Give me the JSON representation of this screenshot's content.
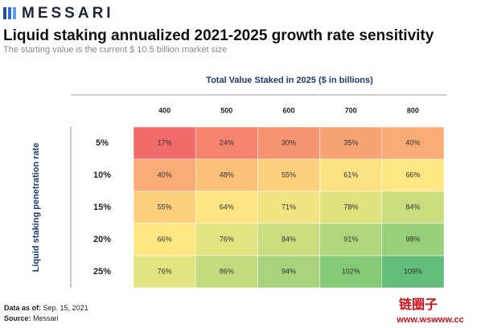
{
  "header": {
    "logo": "MESSARI",
    "title": "Liquid staking annualized 2021-2025 growth rate sensitivity",
    "subtitle": "The starting value is the current $ 10.5 billion market size"
  },
  "table": {
    "column_title": "Total Value Staked in 2025 ($ in billions)",
    "row_title": "Liquid staking penetration rate",
    "columns": [
      "400",
      "500",
      "600",
      "700",
      "800"
    ],
    "rows": [
      {
        "label": "5%",
        "cells": [
          "17%",
          "24%",
          "30%",
          "35%",
          "40%"
        ]
      },
      {
        "label": "10%",
        "cells": [
          "40%",
          "48%",
          "55%",
          "61%",
          "66%"
        ]
      },
      {
        "label": "15%",
        "cells": [
          "55%",
          "64%",
          "71%",
          "78%",
          "84%"
        ]
      },
      {
        "label": "20%",
        "cells": [
          "66%",
          "76%",
          "84%",
          "91%",
          "98%"
        ]
      },
      {
        "label": "25%",
        "cells": [
          "76%",
          "86%",
          "94%",
          "102%",
          "109%"
        ]
      }
    ],
    "colors": [
      [
        "#f26b6b",
        "#f5836e",
        "#f69370",
        "#f8a373",
        "#f9ab75"
      ],
      [
        "#f9ab75",
        "#fbc078",
        "#fcd07d",
        "#fee182",
        "#fee783"
      ],
      [
        "#fcd07d",
        "#fee482",
        "#f1e583",
        "#dde27f",
        "#c9dd7f"
      ],
      [
        "#fee783",
        "#e2e381",
        "#c9dd7f",
        "#afd67b",
        "#98cf79"
      ],
      [
        "#e2e381",
        "#c3db7e",
        "#a6d37b",
        "#85ca77",
        "#63be7b"
      ]
    ]
  },
  "footer": [
    {
      "label": "Data as of:",
      "value": "Sep. 15, 2021"
    },
    {
      "label": "Source:",
      "value": "Messari"
    }
  ],
  "watermark": {
    "name": "链圈子",
    "url": "www.wswww.cc"
  }
}
